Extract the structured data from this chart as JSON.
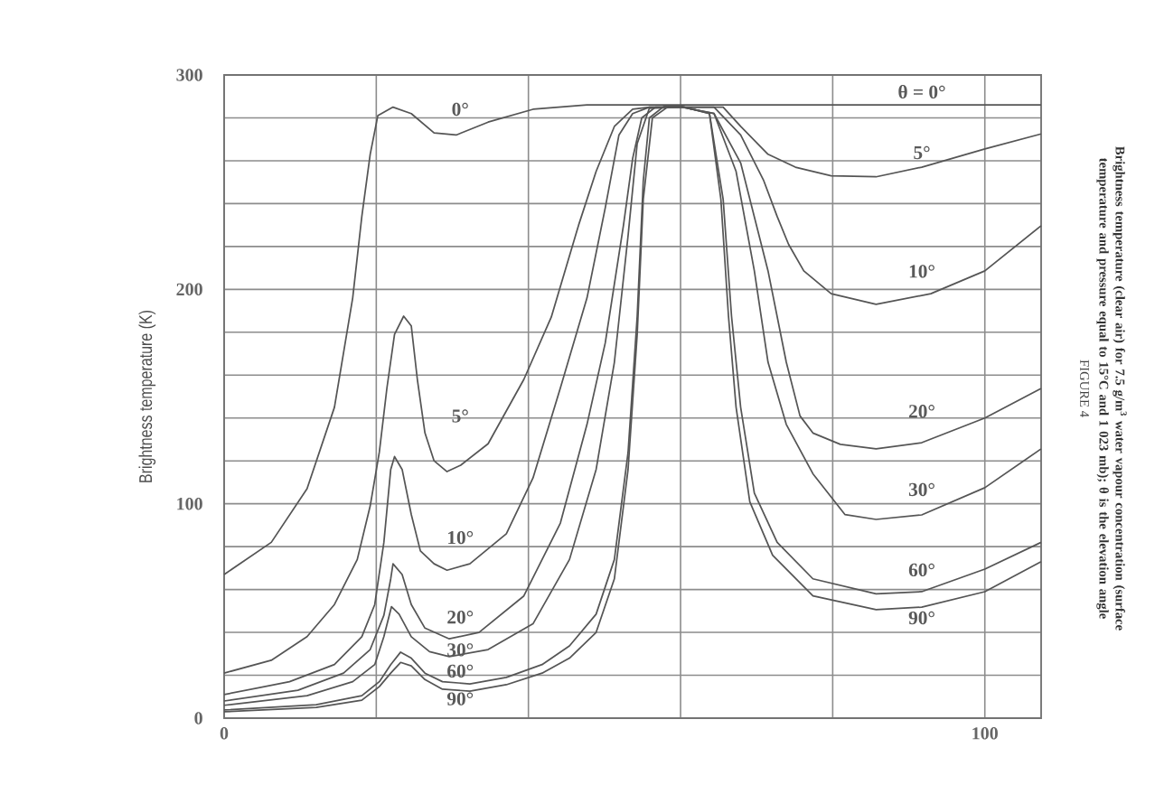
{
  "chart_data": {
    "type": "line",
    "title": "FIGURE 4",
    "subtitle": "Brightness temperature (clear air) for 7.5 g/m$^{3}$ water vapour concentration (surface temperature and pressure equal to 15°C and 1 023 mb); **θ** is the elevation angle",
    "ylabel": "Brightness temperature (K)",
    "xlim": [
      0,
      107.4
    ],
    "ylim": [
      0,
      300
    ],
    "xticks": [
      0,
      {
        "value": 20,
        "label": null
      },
      {
        "value": 40,
        "label": null
      },
      {
        "value": 60,
        "label": null
      },
      {
        "value": 80,
        "label": null
      },
      100
    ],
    "yticks": [
      0,
      {
        "value": 20,
        "label": null
      },
      {
        "value": 40,
        "label": null
      },
      {
        "value": 60,
        "label": null
      },
      {
        "value": 80,
        "label": null
      },
      100,
      {
        "value": 120,
        "label": null
      },
      {
        "value": 140,
        "label": null
      },
      {
        "value": 160,
        "label": null
      },
      {
        "value": 180,
        "label": null
      },
      200,
      {
        "value": 220,
        "label": null
      },
      {
        "value": 240,
        "label": null
      },
      {
        "value": 260,
        "label": null
      },
      {
        "value": 280,
        "label": null
      },
      300
    ],
    "grid": true,
    "marker": "none",
    "line_style": "solid",
    "series": [
      {
        "color": "#555555",
        "x": [
          0,
          6.2,
          10.9,
          14.5,
          16.9,
          18.1,
          19.2,
          20.2,
          22.2,
          24.6,
          27.6,
          30.5,
          34.7,
          40.6,
          47.7,
          60.2,
          107.4
        ],
        "values": [
          67,
          82,
          107,
          145,
          196,
          234,
          263,
          281,
          285,
          282,
          273,
          272,
          278,
          284,
          286,
          286,
          286
        ]
      },
      {
        "color": "#555555",
        "x": [
          0,
          6.2,
          10.9,
          14.5,
          17.5,
          19.2,
          20.4,
          21.4,
          22.4,
          23.6,
          24.6,
          25.4,
          26.4,
          27.6,
          29.3,
          31.1,
          34.7,
          39.4,
          43.0,
          46.6,
          48.9,
          51.3,
          53.7,
          55.9,
          60.2,
          65.6,
          67.9,
          71.5,
          75.1,
          79.8,
          85.7,
          91.7,
          100,
          107.4
        ],
        "values": [
          21,
          27,
          38,
          53,
          74,
          99,
          124,
          154,
          179,
          187.5,
          183,
          158,
          133,
          120,
          115,
          118,
          128,
          158,
          187,
          230,
          255,
          276,
          284,
          285,
          285,
          285,
          276,
          263,
          257,
          253,
          252.5,
          257,
          265.5,
          272.5
        ]
      },
      {
        "color": "#555555",
        "x": [
          0,
          8.6,
          14.5,
          18.1,
          19.8,
          21.0,
          21.9,
          22.4,
          23.4,
          24.6,
          25.8,
          27.6,
          29.3,
          32.3,
          37.1,
          40.6,
          44.2,
          47.7,
          50.1,
          51.9,
          53.7,
          55.9,
          60.2,
          64.4,
          67.9,
          70.9,
          72.7,
          74.2,
          76.2,
          79.8,
          85.7,
          92.9,
          100,
          107.4
        ],
        "values": [
          11,
          17,
          25,
          38,
          53,
          82,
          116,
          122,
          116,
          95,
          78,
          72,
          69,
          72,
          86,
          112,
          154,
          196,
          238,
          272,
          282,
          285,
          285,
          285,
          272,
          251,
          234,
          221,
          208.6,
          198,
          193,
          198,
          208.6,
          229.7
        ]
      },
      {
        "color": "#555555",
        "x": [
          0,
          9.7,
          15.7,
          19.2,
          21.0,
          21.9,
          22.2,
          23.4,
          24.6,
          26.4,
          29.6,
          33.5,
          39.4,
          44.2,
          47.7,
          50.1,
          52.5,
          53.7,
          54.9,
          56.7,
          60.2,
          64.4,
          67.9,
          71.5,
          73.9,
          75.7,
          77.4,
          81.0,
          85.7,
          91.7,
          100,
          107.4
        ],
        "values": [
          8,
          13,
          21,
          32,
          48,
          65,
          72,
          67,
          53,
          42,
          37,
          40,
          57,
          91,
          137,
          175,
          230,
          261,
          280,
          285,
          285,
          282,
          259,
          208.6,
          166,
          141,
          133,
          127.7,
          125.6,
          128.5,
          140,
          153.8
        ]
      },
      {
        "color": "#555555",
        "x": [
          0,
          10.9,
          16.9,
          19.8,
          21.0,
          22.0,
          23.0,
          24.6,
          27.0,
          29.6,
          34.7,
          40.6,
          45.4,
          48.9,
          51.3,
          53.1,
          54.3,
          55.9,
          60.2,
          64.4,
          67.3,
          69.7,
          71.5,
          73.9,
          77.4,
          81.6,
          85.7,
          91.7,
          100,
          107.4
        ],
        "values": [
          6,
          10.5,
          17,
          25,
          38,
          52,
          48.5,
          38,
          31,
          28.7,
          32,
          44,
          74,
          116,
          166,
          225,
          268,
          284.5,
          285,
          282,
          255,
          208.6,
          166,
          137,
          114,
          95,
          92.7,
          94.8,
          107.5,
          125.6
        ]
      },
      {
        "color": "#555555",
        "x": [
          0,
          12.1,
          18.1,
          20.4,
          21.9,
          23.2,
          24.6,
          26.4,
          28.7,
          32.3,
          37.1,
          41.8,
          45.4,
          48.9,
          51.3,
          53.1,
          54.3,
          55.1,
          55.9,
          57.8,
          60.2,
          63.8,
          65.6,
          66.7,
          67.9,
          69.7,
          72.7,
          77.4,
          85.7,
          91.7,
          100,
          107.4
        ],
        "values": [
          3.8,
          6.3,
          10.5,
          17,
          25,
          30.8,
          28,
          21,
          17,
          16,
          19,
          25,
          33.7,
          48.5,
          74,
          124,
          187.5,
          250.7,
          280,
          285.3,
          285.3,
          282,
          242,
          187.5,
          145,
          105,
          82,
          65,
          58,
          59,
          69.5,
          82
        ]
      },
      {
        "color": "#555555",
        "x": [
          0,
          12.1,
          18.1,
          20.4,
          21.9,
          23.2,
          24.6,
          26.4,
          28.7,
          32.3,
          37.1,
          41.8,
          45.4,
          48.9,
          51.3,
          53.1,
          54.3,
          55.1,
          56.3,
          58.4,
          60.2,
          63.8,
          65.3,
          66.3,
          67.3,
          69.1,
          72.1,
          77.4,
          85.7,
          91.7,
          100,
          107.4
        ],
        "values": [
          3,
          5,
          8.4,
          14.7,
          21,
          26,
          24.4,
          18,
          13.5,
          12.6,
          15.6,
          21,
          28,
          40,
          65,
          116,
          179,
          242,
          280,
          285.3,
          285.3,
          282,
          242,
          187.5,
          145,
          101,
          76,
          57,
          50.6,
          51.8,
          59,
          73
        ]
      }
    ],
    "annotations": [
      "0°",
      "5°",
      "10°",
      "20°",
      "30°",
      "60°",
      "90°",
      "θ = 0°",
      "5°",
      "10°",
      "20°",
      "30°",
      "60°",
      "90°"
    ]
  }
}
